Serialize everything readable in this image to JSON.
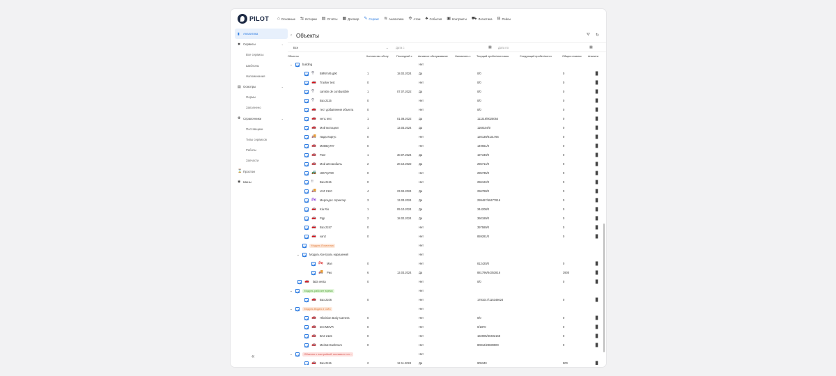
{
  "app": {
    "logo": "PILOT"
  },
  "nav": [
    {
      "label": "Основные",
      "icon": "home-icon",
      "glyph": "⌂"
    },
    {
      "label": "Истории",
      "icon": "route-icon",
      "glyph": "⇆"
    },
    {
      "label": "Отчёты",
      "icon": "report-icon",
      "glyph": "▤"
    },
    {
      "label": "Договор",
      "icon": "contract-icon",
      "glyph": "▦"
    },
    {
      "label": "Сервис",
      "icon": "wrench-icon",
      "glyph": "✎",
      "active": true
    },
    {
      "label": "Аналитика",
      "icon": "analytics-icon",
      "glyph": "≋"
    },
    {
      "label": "Атом",
      "icon": "atom-icon",
      "glyph": "✣"
    },
    {
      "label": "События",
      "icon": "bell-icon",
      "glyph": "♣"
    },
    {
      "label": "Контракты",
      "icon": "briefcase-icon",
      "glyph": "▣"
    },
    {
      "label": "Логистика",
      "icon": "truck-icon",
      "glyph": "⛟"
    },
    {
      "label": "Рейсы",
      "icon": "bus-icon",
      "glyph": "⊟"
    }
  ],
  "sidebar": [
    {
      "label": "Аналитика",
      "icon": "chart-icon",
      "glyph": "▮",
      "active": true
    },
    {
      "label": "Сервисы",
      "icon": "tools-icon",
      "glyph": "✖",
      "chevron": "⌄"
    },
    {
      "label": "Все сервисы",
      "sub": true
    },
    {
      "label": "Шаблоны",
      "sub": true
    },
    {
      "label": "Напоминания",
      "sub": true
    },
    {
      "label": "Осмотры",
      "icon": "doc-icon",
      "glyph": "▤",
      "chevron": "⌄"
    },
    {
      "label": "Формы",
      "sub": true
    },
    {
      "label": "Заполнено",
      "sub": true
    },
    {
      "label": "Справочники",
      "icon": "book-icon",
      "glyph": "✤",
      "chevron": "⌄"
    },
    {
      "label": "Поставщики",
      "sub": true
    },
    {
      "label": "Типы сервисов",
      "sub": true
    },
    {
      "label": "Работы",
      "sub": true
    },
    {
      "label": "Запчасти",
      "sub": true
    },
    {
      "label": "Простои",
      "icon": "hourglass-icon",
      "glyph": "⌛"
    },
    {
      "label": "Шины",
      "icon": "tire-icon",
      "glyph": "◉"
    }
  ],
  "sidebar_collapse": "«",
  "page": {
    "back": "‹",
    "title": "Объекты",
    "filter_icon": "filter-icon",
    "refresh_icon": "refresh-icon",
    "filter_glyph": "⛛",
    "refresh_glyph": "↻"
  },
  "filters": {
    "select_value": "Все",
    "chevron": "⌄",
    "date_from_placeholder": "Дата с",
    "date_to_placeholder": "Дата по",
    "calendar_glyph": "▦"
  },
  "columns": [
    "Объекты",
    "Количество обслу",
    "Последний с",
    "Активное обслуживание",
    "Напомнить з",
    "Текущий пробег/моточасы",
    "Следующий пробег/моточ",
    "Общая стоимос",
    "Аналити"
  ],
  "rows": [
    {
      "kind": "group",
      "level": 0,
      "label": "building",
      "exp": "⌄",
      "active": "Нет"
    },
    {
      "kind": "obj",
      "level": 1,
      "icon": "pin-icon",
      "glyph": "⚲",
      "color": "#556",
      "name": "BMW M5 g90",
      "count": "1",
      "last": "18.02.2024",
      "active": "Да",
      "mileage": "0/0",
      "total": "0"
    },
    {
      "kind": "obj",
      "level": 1,
      "icon": "car-icon",
      "glyph": "🚗",
      "color": "#667",
      "name": "Tracker test",
      "count": "0",
      "last": "",
      "active": "Нет",
      "mileage": "0/0",
      "total": "0"
    },
    {
      "kind": "obj",
      "level": 1,
      "icon": "pin-icon",
      "glyph": "⚲",
      "color": "#556",
      "name": "camión de combustible",
      "count": "1",
      "last": "07.07.2022",
      "active": "Да",
      "mileage": "0/0",
      "total": "0"
    },
    {
      "kind": "obj",
      "level": 1,
      "icon": "pin-icon",
      "glyph": "⚲",
      "color": "#556",
      "name": "Ваз 2115",
      "count": "0",
      "last": "",
      "active": "Нет",
      "mileage": "0/0",
      "total": "0"
    },
    {
      "kind": "obj",
      "level": 1,
      "icon": "car-icon",
      "glyph": "🚗",
      "color": "#667",
      "name": "тест добавления объекта",
      "count": "0",
      "last": "",
      "active": "Нет",
      "mileage": "0/0",
      "total": "0"
    },
    {
      "kind": "obj",
      "level": 1,
      "icon": "car-icon",
      "glyph": "🚗",
      "color": "#667",
      "name": "ven1 test",
      "count": "1",
      "last": "01.08.2022",
      "active": "Да",
      "mileage": "111316/8025054",
      "total": "0"
    },
    {
      "kind": "obj",
      "level": 1,
      "icon": "car-icon",
      "glyph": "🚗",
      "color": "#667",
      "name": "Мой мотоцикл",
      "count": "1",
      "last": "13.03.2024",
      "active": "Да",
      "mileage": "1168104/0",
      "total": "0"
    },
    {
      "kind": "obj",
      "level": 1,
      "icon": "truck-icon",
      "glyph": "🚚",
      "color": "#667",
      "name": "Лада Ларгус",
      "count": "0",
      "last": "",
      "active": "Нет",
      "mileage": "120139/8131766",
      "total": "0"
    },
    {
      "kind": "obj",
      "level": 1,
      "icon": "car-icon",
      "glyph": "🚗",
      "color": "#667",
      "name": "М358ку797",
      "count": "0",
      "last": "",
      "active": "Нет",
      "mileage": "149661/0",
      "total": "0"
    },
    {
      "kind": "obj",
      "level": 1,
      "icon": "car-icon",
      "glyph": "🚗",
      "color": "#667",
      "name": "Ранг",
      "count": "1",
      "last": "30.07.2024",
      "active": "Да",
      "mileage": "197349/0",
      "total": "0"
    },
    {
      "kind": "obj",
      "level": 1,
      "icon": "red-car-icon",
      "glyph": "🚗",
      "color": "#d33",
      "name": "Мой автомобиль",
      "count": "2",
      "last": "20.10.2022",
      "active": "Да",
      "mileage": "296714/0",
      "total": "0"
    },
    {
      "kind": "obj",
      "level": 1,
      "icon": "tractor-icon",
      "glyph": "🚜",
      "color": "#667",
      "name": "с867тр790",
      "count": "0",
      "last": "",
      "active": "Нет",
      "mileage": "295735/0",
      "total": "0"
    },
    {
      "kind": "obj",
      "level": 1,
      "icon": "person-icon",
      "glyph": "‼",
      "color": "#556",
      "name": "Ваз 2115",
      "count": "0",
      "last": "",
      "active": "Нет",
      "mileage": "296122/0",
      "total": "0"
    },
    {
      "kind": "obj",
      "level": 1,
      "icon": "blue-truck-icon",
      "glyph": "🚚",
      "color": "#3a6fd8",
      "name": "VAZ 2110",
      "count": "4",
      "last": "23.04.2024",
      "active": "Да",
      "mileage": "296788/0",
      "total": "0"
    },
    {
      "kind": "obj",
      "level": 1,
      "icon": "purple-bike-icon",
      "glyph": "🏍",
      "color": "#8a3ad8",
      "name": "Мерседес спринтер",
      "count": "3",
      "last": "13.03.2024",
      "active": "Да",
      "mileage": "299467/68477816",
      "total": "0"
    },
    {
      "kind": "obj",
      "level": 1,
      "icon": "red-car-icon",
      "glyph": "🚗",
      "color": "#c22",
      "name": "Kia Rio",
      "count": "1",
      "last": "09.10.2024",
      "active": "Да",
      "mileage": "344208/0",
      "total": "0"
    },
    {
      "kind": "obj",
      "level": 1,
      "icon": "car-icon",
      "glyph": "🚗",
      "color": "#667",
      "name": "Ррр",
      "count": "2",
      "last": "18.02.2024",
      "active": "Да",
      "mileage": "360189/0",
      "total": "0"
    },
    {
      "kind": "obj",
      "level": 1,
      "icon": "car-icon",
      "glyph": "🚗",
      "color": "#667",
      "name": "Ваз 2157",
      "count": "0",
      "last": "",
      "active": "Нет",
      "mileage": "397589/0",
      "total": "0"
    },
    {
      "kind": "obj",
      "level": 1,
      "icon": "car-icon",
      "glyph": "🚗",
      "color": "#667",
      "name": "van2",
      "count": "0",
      "last": "",
      "active": "Нет",
      "mileage": "859281/0",
      "total": "0"
    },
    {
      "kind": "tag",
      "level": 1,
      "label": "Модуль Логистика",
      "tag": "orange",
      "active": "Нет"
    },
    {
      "kind": "group",
      "level": 1,
      "label": "Модуль Контроль нарушений",
      "exp": "⌄",
      "active": "Нет"
    },
    {
      "kind": "obj",
      "level": 2,
      "icon": "red-bike-icon",
      "glyph": "🏍",
      "color": "#d33",
      "name": "Man",
      "count": "0",
      "last": "",
      "active": "Нет",
      "mileage": "812420/0",
      "total": "0"
    },
    {
      "kind": "obj",
      "level": 2,
      "icon": "truck-icon",
      "glyph": "🚚",
      "color": "#667",
      "name": "Рио",
      "count": "6",
      "last": "13.03.2024",
      "active": "Да",
      "mileage": "881796/84353816",
      "total": "3900"
    },
    {
      "kind": "obj",
      "level": 0,
      "icon": "car-icon",
      "glyph": "🚗",
      "color": "#667",
      "name": "lada vesta",
      "count": "0",
      "last": "",
      "active": "Нет",
      "mileage": "0/0",
      "total": "0"
    },
    {
      "kind": "tag",
      "level": 0,
      "label": "Модуль рабочее время",
      "tag": "green",
      "exp": "⌄",
      "active": "Нет"
    },
    {
      "kind": "obj",
      "level": 1,
      "icon": "car-icon",
      "glyph": "🚗",
      "color": "#667",
      "name": "Ваз 2106",
      "count": "0",
      "last": "",
      "active": "Нет",
      "mileage": "1781017/115346624",
      "total": "0"
    },
    {
      "kind": "tag",
      "level": 0,
      "label": "Модуль Видео и СМС",
      "tag": "orange",
      "exp": "⌄",
      "active": "Нет"
    },
    {
      "kind": "obj",
      "level": 1,
      "icon": "car-icon",
      "glyph": "🚗",
      "color": "#667",
      "name": "Hikvision Body Camera",
      "count": "0",
      "last": "",
      "active": "Нет",
      "mileage": "0/0",
      "total": "0"
    },
    {
      "kind": "obj",
      "level": 1,
      "icon": "car-icon",
      "glyph": "🚗",
      "color": "#667",
      "name": "test MDVR",
      "count": "0",
      "last": "",
      "active": "Нет",
      "mileage": "0/1870",
      "total": "0"
    },
    {
      "kind": "obj",
      "level": 1,
      "icon": "car-icon",
      "glyph": "🚗",
      "color": "#667",
      "name": "ВАЗ 2115",
      "count": "0",
      "last": "",
      "active": "Нет",
      "mileage": "182905/30402168",
      "total": "0"
    },
    {
      "kind": "obj",
      "level": 1,
      "icon": "car-icon",
      "glyph": "🚗",
      "color": "#667",
      "name": "Meitrat DashCam",
      "count": "0",
      "last": "",
      "active": "Нет",
      "mileage": "80812/28839900",
      "total": "0"
    },
    {
      "kind": "tag",
      "level": 0,
      "label": "Объекты с настройкой топлива в топ...",
      "tag": "red",
      "exp": "⌄",
      "active": "Нет"
    },
    {
      "kind": "obj",
      "level": 1,
      "icon": "blue-car-icon",
      "glyph": "🚗",
      "color": "#3a6fd8",
      "name": "Ваз 2115",
      "count": "2",
      "last": "12.11.2024",
      "active": "Да",
      "mileage": "905340",
      "total": "500"
    }
  ],
  "analytics_glyph": "▐▌",
  "analytics_icon": "bar-chart-icon"
}
